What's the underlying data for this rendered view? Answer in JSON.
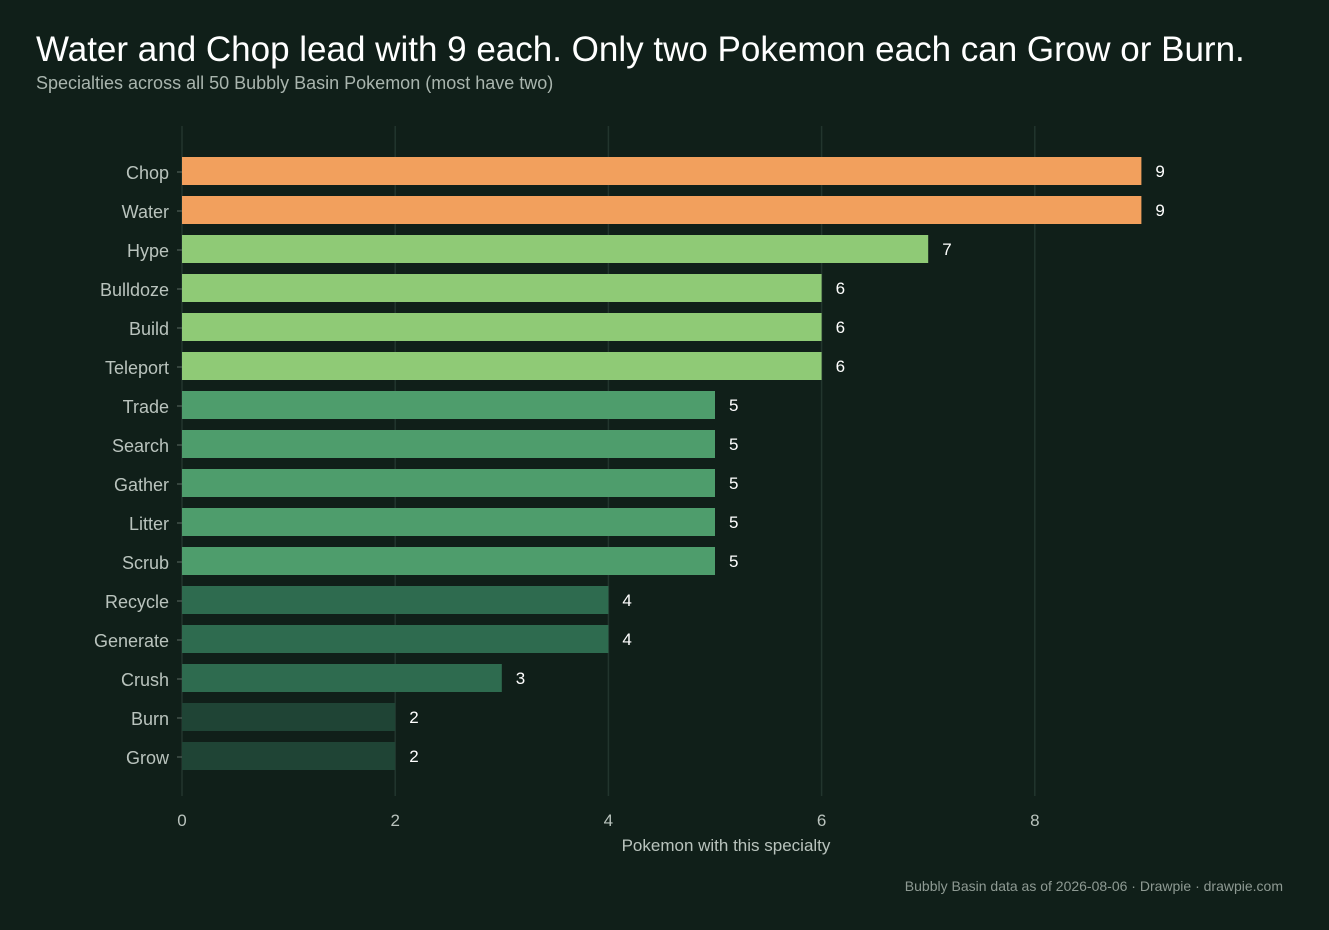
{
  "chart_data": {
    "type": "bar",
    "orientation": "horizontal",
    "title": "Water and Chop lead with 9 each. Only two Pokemon each can Grow or Burn.",
    "subtitle": "Specialties across all 50 Bubbly Basin Pokemon (most have two)",
    "xlabel": "Pokemon with this specialty",
    "ylabel": "",
    "xlim": [
      0,
      9
    ],
    "xticks": [
      0,
      2,
      4,
      6,
      8
    ],
    "grid": "vertical",
    "legend": "none",
    "categories": [
      "Chop",
      "Water",
      "Hype",
      "Bulldoze",
      "Build",
      "Teleport",
      "Trade",
      "Search",
      "Gather",
      "Litter",
      "Scrub",
      "Recycle",
      "Generate",
      "Crush",
      "Burn",
      "Grow"
    ],
    "values": [
      9,
      9,
      7,
      6,
      6,
      6,
      5,
      5,
      5,
      5,
      5,
      4,
      4,
      3,
      2,
      2
    ],
    "value_labels": [
      "9",
      "9",
      "7",
      "6",
      "6",
      "6",
      "5",
      "5",
      "5",
      "5",
      "5",
      "4",
      "4",
      "3",
      "2",
      "2"
    ]
  },
  "colors": {
    "background": "#101f19",
    "value_9": "#f2a05d",
    "value_6_7": "#8fca76",
    "value_5": "#4e9d6c",
    "value_3_4": "#2e6b4f",
    "value_2": "#1f4435",
    "gridline": "#22352d"
  },
  "footer": "Bubbly Basin data as of 2026-08-06  ·  Drawpie · drawpie.com"
}
